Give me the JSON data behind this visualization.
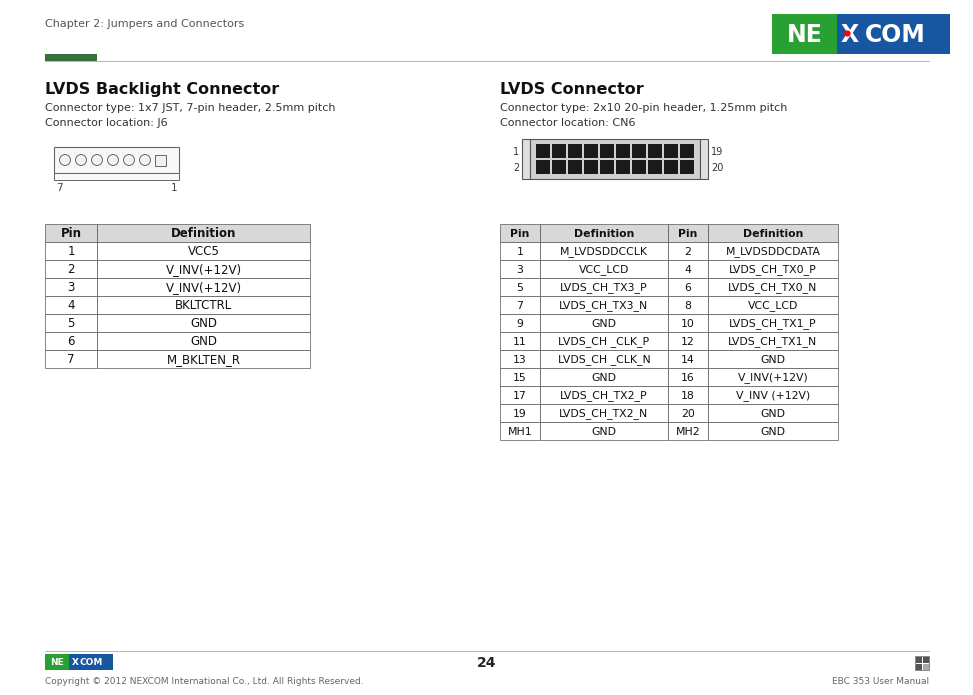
{
  "page_title": "Chapter 2: Jumpers and Connectors",
  "page_number": "24",
  "footer_left": "Copyright © 2012 NEXCOM International Co., Ltd. All Rights Reserved.",
  "footer_right": "EBC 353 User Manual",
  "bg_color": "#ffffff",
  "left_section": {
    "title": "LVDS Backlight Connector",
    "line1": "Connector type: 1x7 JST, 7-pin header, 2.5mm pitch",
    "line2": "Connector location: J6",
    "table_headers": [
      "Pin",
      "Definition"
    ],
    "table_rows": [
      [
        "1",
        "VCC5"
      ],
      [
        "2",
        "V_INV(+12V)"
      ],
      [
        "3",
        "V_INV(+12V)"
      ],
      [
        "4",
        "BKLTCTRL"
      ],
      [
        "5",
        "GND"
      ],
      [
        "6",
        "GND"
      ],
      [
        "7",
        "M_BKLTEN_R"
      ]
    ]
  },
  "right_section": {
    "title": "LVDS Connector",
    "line1": "Connector type: 2x10 20-pin header, 1.25mm pitch",
    "line2": "Connector location: CN6",
    "table_headers": [
      "Pin",
      "Definition",
      "Pin",
      "Definition"
    ],
    "table_rows": [
      [
        "1",
        "M_LVDSDDCCLK",
        "2",
        "M_LVDSDDCDATA"
      ],
      [
        "3",
        "VCC_LCD",
        "4",
        "LVDS_CH_TX0_P"
      ],
      [
        "5",
        "LVDS_CH_TX3_P",
        "6",
        "LVDS_CH_TX0_N"
      ],
      [
        "7",
        "LVDS_CH_TX3_N",
        "8",
        "VCC_LCD"
      ],
      [
        "9",
        "GND",
        "10",
        "LVDS_CH_TX1_P"
      ],
      [
        "11",
        "LVDS_CH _CLK_P",
        "12",
        "LVDS_CH_TX1_N"
      ],
      [
        "13",
        "LVDS_CH _CLK_N",
        "14",
        "GND"
      ],
      [
        "15",
        "GND",
        "16",
        "V_INV(+12V)"
      ],
      [
        "17",
        "LVDS_CH_TX2_P",
        "18",
        "V_INV (+12V)"
      ],
      [
        "19",
        "LVDS_CH_TX2_N",
        "20",
        "GND"
      ],
      [
        "MH1",
        "GND",
        "MH2",
        "GND"
      ]
    ]
  }
}
